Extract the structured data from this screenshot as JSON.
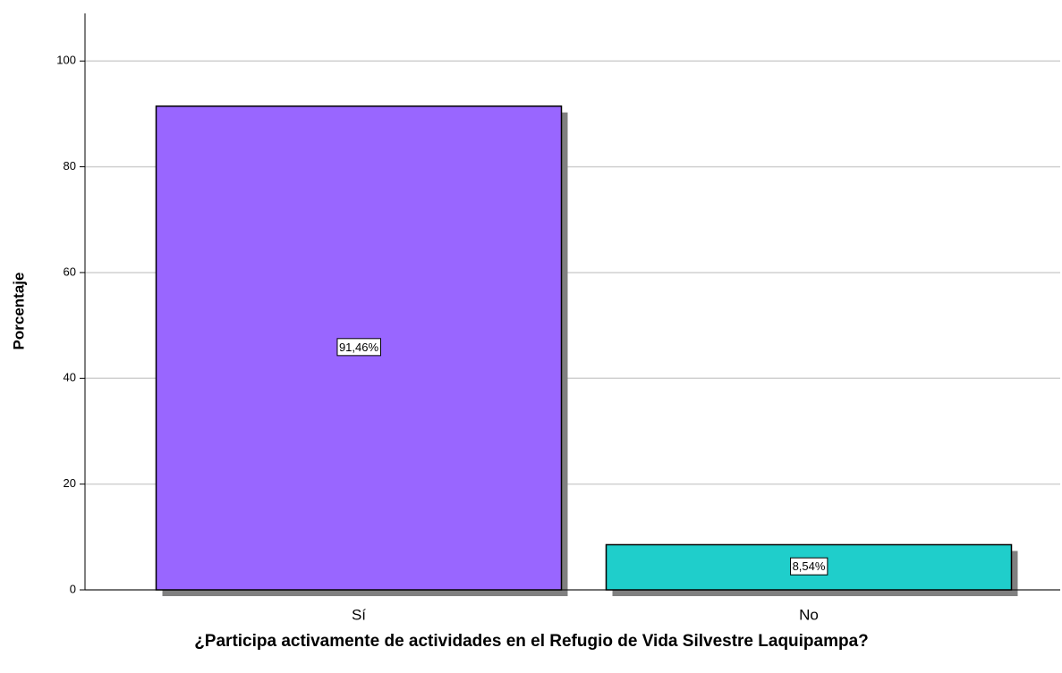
{
  "chart_data": {
    "type": "bar",
    "x_label": "¿Participa activamente de actividades en el Refugio de Vida Silvestre Laquipampa?",
    "y_label": "Porcentaje",
    "categories": [
      "Sí",
      "No"
    ],
    "values": [
      91.46,
      8.54
    ],
    "value_labels": [
      "91,46%",
      "8,54%"
    ],
    "colors": [
      "#9966ff",
      "#1fcecb"
    ],
    "ylim": [
      0,
      109
    ],
    "yticks": [
      0,
      20,
      40,
      60,
      80,
      100
    ],
    "grid": true
  }
}
